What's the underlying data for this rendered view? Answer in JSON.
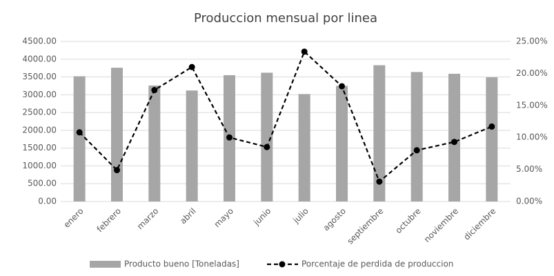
{
  "chart_data": {
    "type": "bar",
    "title": "Produccion mensual por linea",
    "categories": [
      "enero",
      "febrero",
      "marzo",
      "abril",
      "mayo",
      "junio",
      "julio",
      "agosto",
      "septiembre",
      "octubre",
      "noviembre",
      "diciembre"
    ],
    "series": [
      {
        "name": "Producto bueno [Toneladas]",
        "type": "bar",
        "axis": "y",
        "color": "#a6a6a6",
        "values": [
          3520,
          3760,
          3260,
          3120,
          3550,
          3620,
          3020,
          3250,
          3830,
          3640,
          3590,
          3490
        ]
      },
      {
        "name": "Porcentaje de perdida de produccion",
        "type": "line",
        "axis": "y2",
        "color": "#000000",
        "dashed": true,
        "values": [
          10.8,
          4.9,
          17.4,
          21.0,
          10.0,
          8.5,
          23.4,
          18.0,
          3.1,
          8.0,
          9.3,
          11.7
        ]
      }
    ],
    "ylim": [
      0,
      4500
    ],
    "yticks": [
      {
        "value": 0,
        "label": "0.00"
      },
      {
        "value": 500,
        "label": "500.00"
      },
      {
        "value": 1000,
        "label": "1000.00"
      },
      {
        "value": 1500,
        "label": "1500.00"
      },
      {
        "value": 2000,
        "label": "2000.00"
      },
      {
        "value": 2500,
        "label": "2500.00"
      },
      {
        "value": 3000,
        "label": "3000.00"
      },
      {
        "value": 3500,
        "label": "3500.00"
      },
      {
        "value": 4000,
        "label": "4000.00"
      },
      {
        "value": 4500,
        "label": "4500.00"
      }
    ],
    "y2lim": [
      0,
      25
    ],
    "y2ticks": [
      {
        "value": 0,
        "label": "0.00%"
      },
      {
        "value": 5,
        "label": "5.00%"
      },
      {
        "value": 10,
        "label": "10.00%"
      },
      {
        "value": 15,
        "label": "15.00%"
      },
      {
        "value": 20,
        "label": "20.00%"
      },
      {
        "value": 25,
        "label": "25.00%"
      }
    ],
    "grid": true,
    "legend": "bottom"
  }
}
